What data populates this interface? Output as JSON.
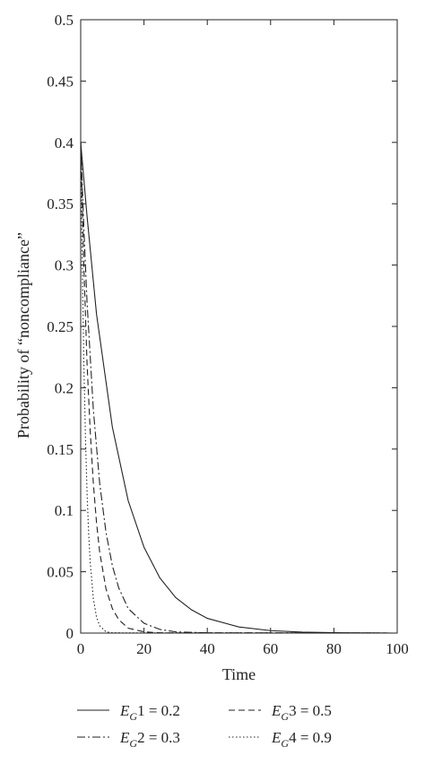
{
  "chart_data": {
    "type": "line",
    "title": "",
    "xlabel": "Time",
    "ylabel": "Probability of “noncompliance”",
    "xlim": [
      0,
      100
    ],
    "ylim": [
      0,
      0.5
    ],
    "x_ticks": [
      0,
      20,
      40,
      60,
      80,
      100
    ],
    "y_ticks": [
      0,
      0.05,
      0.1,
      0.15,
      0.2,
      0.25,
      0.3,
      0.35,
      0.4,
      0.45,
      0.5
    ],
    "x_tick_labels": [
      "0",
      "20",
      "40",
      "60",
      "80",
      "100"
    ],
    "y_tick_labels": [
      "0",
      "0.05",
      "0.1",
      "0.15",
      "0.2",
      "0.25",
      "0.3",
      "0.35",
      "0.4",
      "0.45",
      "0.5"
    ],
    "grid": false,
    "legend_position": "bottom",
    "series": [
      {
        "name": "E_G1 = 0.2",
        "legend": {
          "main": "E",
          "sub": "G",
          "rest": "1 = 0.2"
        },
        "line_style": "solid",
        "x": [
          0,
          2,
          5,
          10,
          15,
          20,
          25,
          30,
          35,
          40,
          50,
          60,
          70,
          80,
          100
        ],
        "y": [
          0.4,
          0.34,
          0.26,
          0.168,
          0.108,
          0.07,
          0.045,
          0.029,
          0.019,
          0.012,
          0.005,
          0.002,
          0.0008,
          0.0003,
          0.0
        ]
      },
      {
        "name": "E_G2 = 0.3",
        "legend": {
          "main": "E",
          "sub": "G",
          "rest": "2 = 0.3"
        },
        "line_style": "dashdot",
        "x": [
          0,
          1,
          2,
          4,
          6,
          8,
          10,
          12,
          15,
          20,
          25,
          30,
          40,
          100
        ],
        "y": [
          0.4,
          0.33,
          0.27,
          0.182,
          0.122,
          0.082,
          0.055,
          0.037,
          0.02,
          0.008,
          0.003,
          0.001,
          0.0002,
          0.0
        ]
      },
      {
        "name": "E_G3 = 0.5",
        "legend": {
          "main": "E",
          "sub": "G",
          "rest": "3 = 0.5"
        },
        "line_style": "dashed",
        "x": [
          0,
          1,
          2,
          3,
          4,
          5,
          6,
          8,
          10,
          12,
          15,
          20,
          25,
          100
        ],
        "y": [
          0.4,
          0.3,
          0.22,
          0.165,
          0.122,
          0.09,
          0.066,
          0.036,
          0.02,
          0.011,
          0.004,
          0.001,
          0.0002,
          0.0
        ]
      },
      {
        "name": "E_G4 = 0.9",
        "legend": {
          "main": "E",
          "sub": "G",
          "rest": "4 = 0.9"
        },
        "line_style": "dotted",
        "x": [
          0,
          0.5,
          1,
          1.5,
          2,
          2.5,
          3,
          4,
          5,
          6,
          8,
          10,
          100
        ],
        "y": [
          0.4,
          0.3,
          0.22,
          0.16,
          0.115,
          0.082,
          0.058,
          0.028,
          0.013,
          0.006,
          0.001,
          0.0002,
          0.0
        ]
      }
    ]
  }
}
